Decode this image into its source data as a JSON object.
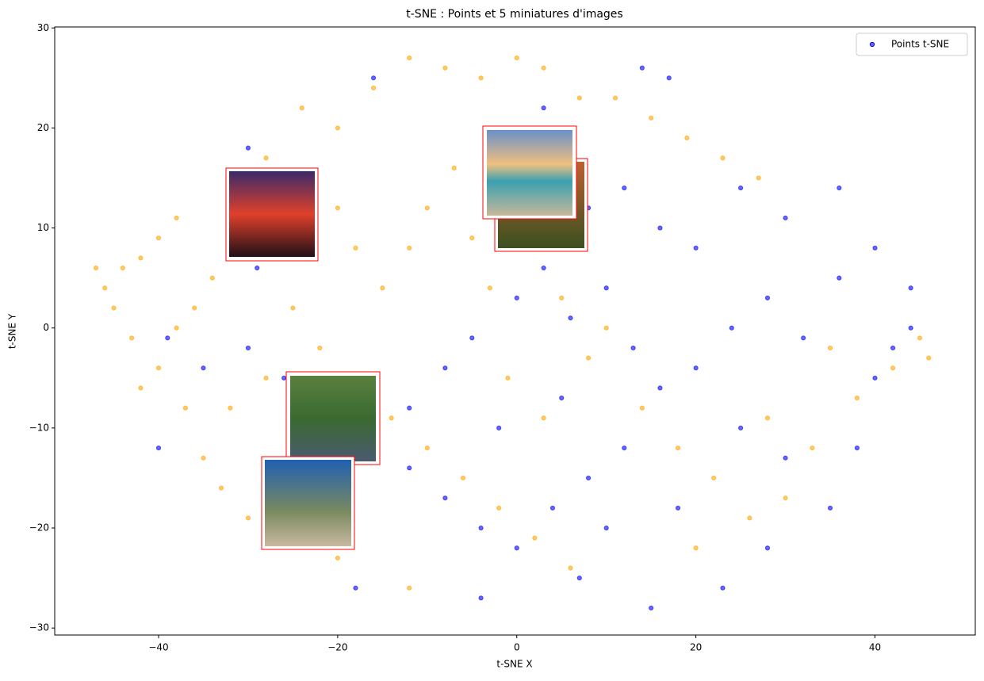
{
  "chart_data": {
    "type": "scatter",
    "title": "t-SNE : Points et 5 miniatures d'images",
    "x_label": "t-SNE X",
    "y_label": "t-SNE Y",
    "xlim": [
      -51.6,
      51.2
    ],
    "ylim": [
      -30.7,
      30.1
    ],
    "xticks": [
      {
        "value": -40,
        "label": "−40"
      },
      {
        "value": -20,
        "label": "−20"
      },
      0,
      20,
      40
    ],
    "yticks": [
      {
        "value": -30,
        "label": "−30"
      },
      {
        "value": -20,
        "label": "−20"
      },
      {
        "value": -10,
        "label": "−10"
      },
      0,
      10,
      20,
      30
    ],
    "legend": "upper right",
    "series": [
      {
        "name": "Points t-SNE",
        "color": "#0000ff",
        "x": [
          14,
          17,
          -16,
          3,
          25,
          30,
          36,
          40,
          44,
          42,
          38,
          35,
          28,
          23,
          15,
          7,
          -4,
          -18,
          -40,
          -39,
          -35,
          -30,
          -26,
          -22,
          -16,
          -12,
          -8,
          -5,
          0,
          3,
          6,
          10,
          13,
          16,
          20,
          24,
          28,
          32,
          36,
          40,
          12,
          8,
          4,
          0,
          -4,
          -8,
          -12,
          20,
          16,
          12,
          8,
          -30,
          -29,
          -2,
          5,
          25,
          30,
          18,
          10,
          44
        ],
        "values": [
          26,
          25,
          25,
          22,
          14,
          11,
          14,
          8,
          4,
          -2,
          -12,
          -18,
          -22,
          -26,
          -28,
          -25,
          -27,
          -26,
          -12,
          -1,
          -4,
          -2,
          -5,
          -8,
          -11,
          -8,
          -4,
          -1,
          3,
          6,
          1,
          4,
          -2,
          -6,
          -4,
          0,
          3,
          -1,
          5,
          -5,
          -12,
          -15,
          -18,
          -22,
          -20,
          -17,
          -14,
          8,
          10,
          14,
          12,
          18,
          6,
          -10,
          -7,
          -10,
          -13,
          -18,
          -20,
          0
        ]
      },
      {
        "color": "#ffa500",
        "x": [
          -46,
          -44,
          -42,
          -45,
          -40,
          -38,
          -43,
          -40,
          -37,
          -35,
          -33,
          -30,
          -36,
          -34,
          -30,
          -28,
          -24,
          -20,
          -16,
          -12,
          -8,
          -4,
          0,
          3,
          7,
          11,
          15,
          19,
          23,
          27,
          -20,
          -18,
          -15,
          -12,
          -10,
          -7,
          -5,
          -3,
          -25,
          -22,
          -18,
          -14,
          -10,
          -6,
          -2,
          2,
          6,
          -12,
          -20,
          -26,
          10,
          5,
          8,
          14,
          18,
          22,
          26,
          30,
          33,
          38,
          42,
          45,
          46,
          35,
          28,
          -28,
          -32,
          -38,
          -47,
          -42,
          20,
          -1,
          3
        ],
        "values": [
          4,
          6,
          7,
          2,
          9,
          11,
          -1,
          -4,
          -8,
          -13,
          -16,
          -19,
          2,
          5,
          13,
          17,
          22,
          20,
          24,
          27,
          26,
          25,
          27,
          26,
          23,
          23,
          21,
          19,
          17,
          15,
          12,
          8,
          4,
          8,
          12,
          16,
          9,
          4,
          2,
          -2,
          -5,
          -9,
          -12,
          -15,
          -18,
          -21,
          -24,
          -26,
          -23,
          -21,
          0,
          3,
          -3,
          -8,
          -12,
          -15,
          -19,
          -17,
          -12,
          -7,
          -4,
          -1,
          -3,
          -2,
          -9,
          -5,
          -8,
          0,
          6,
          -6,
          -22,
          -5,
          -9
        ]
      }
    ]
  }
}
